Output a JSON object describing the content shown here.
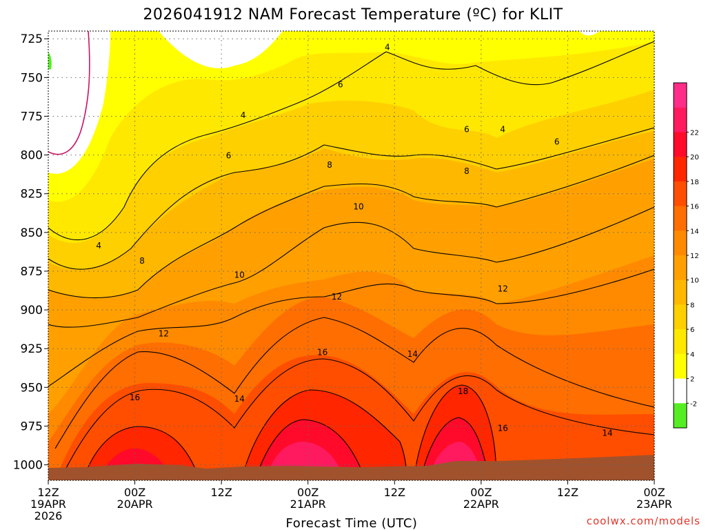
{
  "chart_data": {
    "type": "heatmap",
    "title": "2026041912 NAM Forecast Temperature (ºC) for KLIT",
    "xlabel": "Forecast Time (UTC)",
    "ylabel": "",
    "y_axis": {
      "ticks": [
        725,
        750,
        775,
        800,
        825,
        850,
        875,
        900,
        925,
        950,
        975,
        1000
      ],
      "range": [
        720,
        1010
      ],
      "inverted": true
    },
    "x_axis": {
      "range_hours": [
        0,
        84
      ],
      "ticks": [
        {
          "hour": 0,
          "lines": [
            "12Z",
            "19APR",
            "2026"
          ]
        },
        {
          "hour": 12,
          "lines": [
            "00Z",
            "20APR"
          ]
        },
        {
          "hour": 24,
          "lines": [
            "12Z"
          ]
        },
        {
          "hour": 36,
          "lines": [
            "00Z",
            "21APR"
          ]
        },
        {
          "hour": 48,
          "lines": [
            "12Z"
          ]
        },
        {
          "hour": 60,
          "lines": [
            "00Z",
            "22APR"
          ]
        },
        {
          "hour": 72,
          "lines": [
            "12Z"
          ]
        },
        {
          "hour": 84,
          "lines": [
            "00Z",
            "23APR"
          ]
        }
      ]
    },
    "grid": true,
    "colorbar": {
      "levels": [
        "-2",
        "2",
        "4",
        "6",
        "8",
        "10",
        "12",
        "14",
        "16",
        "18",
        "20",
        "22"
      ],
      "colors": [
        "#55ee22",
        "#ffffff",
        "#ffff00",
        "#ffe800",
        "#ffd000",
        "#ffb800",
        "#ffa000",
        "#ff8a00",
        "#ff6e00",
        "#ff4e00",
        "#ff2600",
        "#ff0a2a",
        "#ff1a60",
        "#ff2d88"
      ]
    },
    "contour_labels": [
      {
        "text": "4",
        "h": 7.0,
        "p": 858
      },
      {
        "text": "4",
        "h": 27.0,
        "p": 774
      },
      {
        "text": "4",
        "h": 47.0,
        "p": 730
      },
      {
        "text": "4",
        "h": 63.0,
        "p": 783
      },
      {
        "text": "6",
        "h": 25.0,
        "p": 800
      },
      {
        "text": "6",
        "h": 40.5,
        "p": 754
      },
      {
        "text": "6",
        "h": 58.0,
        "p": 783
      },
      {
        "text": "6",
        "h": 70.5,
        "p": 791
      },
      {
        "text": "8",
        "h": 13.0,
        "p": 868
      },
      {
        "text": "8",
        "h": 39.0,
        "p": 806
      },
      {
        "text": "8",
        "h": 58.0,
        "p": 810
      },
      {
        "text": "10",
        "h": 26.5,
        "p": 877
      },
      {
        "text": "10",
        "h": 43.0,
        "p": 833
      },
      {
        "text": "12",
        "h": 16.0,
        "p": 915
      },
      {
        "text": "12",
        "h": 40.0,
        "p": 891
      },
      {
        "text": "12",
        "h": 63.0,
        "p": 886
      },
      {
        "text": "14",
        "h": 26.5,
        "p": 957
      },
      {
        "text": "14",
        "h": 50.5,
        "p": 928
      },
      {
        "text": "14",
        "h": 77.5,
        "p": 979
      },
      {
        "text": "16",
        "h": 12.0,
        "p": 956
      },
      {
        "text": "16",
        "h": 38.0,
        "p": 927
      },
      {
        "text": "16",
        "h": 63.0,
        "p": 976
      },
      {
        "text": "18",
        "h": 57.5,
        "p": 952
      }
    ]
  },
  "credit": "coolwx.com/models"
}
